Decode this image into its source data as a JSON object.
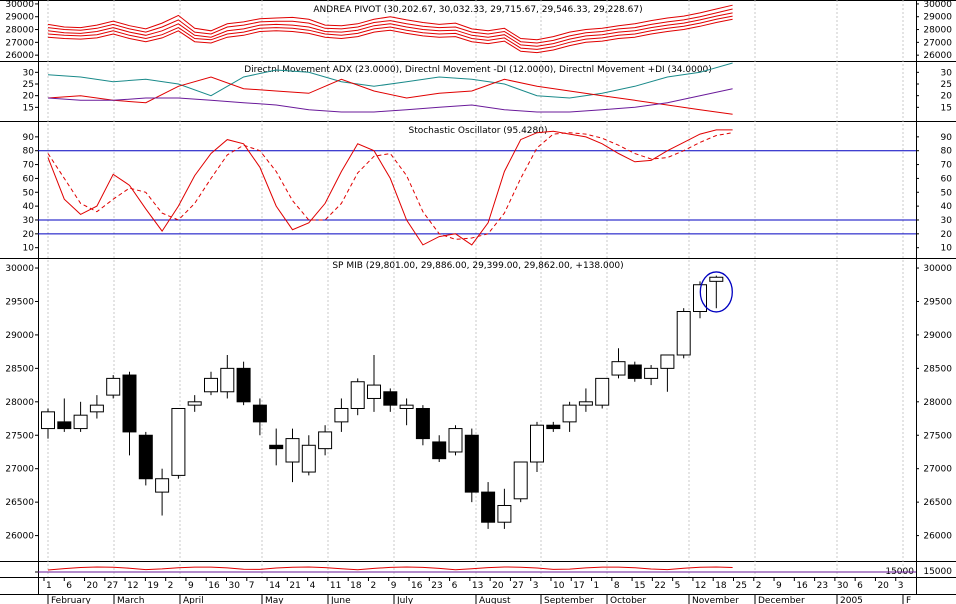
{
  "colors": {
    "bg": "#ffffff",
    "grid": "#bdbdbd",
    "frame": "#000000",
    "red": "#e00000",
    "teal": "#1a8a8a",
    "purple": "#6a1a9a",
    "blue": "#0000c0"
  },
  "chart_data": [
    {
      "type": "line",
      "title": "ANDREA PIVOT (30,202.67, 30,032.33, 29,715.67, 29,546.33, 29,228.67)",
      "ylim": [
        25700,
        30150
      ],
      "yticks": [
        30000,
        29000,
        28000,
        27000,
        26000
      ],
      "ytick_labels": [
        "30000",
        "29000",
        "28000",
        "27000",
        "26000"
      ],
      "x": [
        0,
        1,
        2,
        3,
        4,
        5,
        6,
        7,
        8,
        9,
        10,
        11,
        12,
        13,
        14,
        15,
        16,
        17,
        18,
        19,
        20,
        21,
        22,
        23,
        24,
        25,
        26,
        27,
        28,
        29,
        30,
        31,
        32,
        33,
        34,
        35,
        36,
        37,
        38,
        39,
        40,
        41,
        42
      ],
      "series": [
        {
          "name": "r2",
          "color": "red",
          "values": [
            28400,
            28200,
            28150,
            28350,
            28650,
            28300,
            28050,
            28500,
            29100,
            28100,
            27900,
            28450,
            28600,
            28850,
            28900,
            28950,
            28800,
            28350,
            28300,
            28450,
            28800,
            29000,
            28750,
            28550,
            28400,
            28500,
            28050,
            27900,
            28100,
            27300,
            27200,
            27450,
            27800,
            28000,
            28100,
            28300,
            28450,
            28700,
            28900,
            29050,
            29300,
            29600,
            29900
          ]
        },
        {
          "name": "r1",
          "color": "red",
          "values": [
            28150,
            28000,
            27950,
            28100,
            28400,
            28050,
            27800,
            28200,
            28750,
            27800,
            27650,
            28200,
            28350,
            28600,
            28650,
            28650,
            28500,
            28100,
            28050,
            28200,
            28550,
            28700,
            28450,
            28250,
            28150,
            28200,
            27800,
            27650,
            27850,
            27050,
            26950,
            27150,
            27500,
            27750,
            27850,
            28050,
            28150,
            28400,
            28600,
            28750,
            29000,
            29300,
            29600
          ]
        },
        {
          "name": "pivot",
          "color": "red",
          "values": [
            27900,
            27750,
            27700,
            27850,
            28150,
            27800,
            27550,
            27900,
            28450,
            27550,
            27400,
            27900,
            28050,
            28350,
            28400,
            28350,
            28200,
            27850,
            27800,
            27950,
            28300,
            28450,
            28200,
            28000,
            27900,
            27950,
            27550,
            27400,
            27600,
            26800,
            26700,
            26900,
            27250,
            27500,
            27600,
            27800,
            27900,
            28150,
            28350,
            28500,
            28750,
            29050,
            29300
          ]
        },
        {
          "name": "s1",
          "color": "red",
          "values": [
            27650,
            27550,
            27500,
            27600,
            27900,
            27550,
            27300,
            27600,
            28150,
            27300,
            27200,
            27650,
            27800,
            28100,
            28150,
            28100,
            27950,
            27650,
            27550,
            27700,
            28050,
            28200,
            27950,
            27750,
            27650,
            27700,
            27300,
            27150,
            27350,
            26550,
            26450,
            26650,
            27000,
            27250,
            27350,
            27550,
            27650,
            27900,
            28100,
            28250,
            28500,
            28800,
            29050
          ]
        },
        {
          "name": "s2",
          "color": "red",
          "values": [
            27400,
            27300,
            27250,
            27350,
            27650,
            27300,
            27050,
            27350,
            27900,
            27050,
            26950,
            27400,
            27550,
            27850,
            27900,
            27850,
            27700,
            27400,
            27300,
            27450,
            27800,
            27950,
            27700,
            27500,
            27400,
            27450,
            27050,
            26900,
            27100,
            26300,
            26200,
            26400,
            26750,
            27000,
            27100,
            27300,
            27400,
            27650,
            27850,
            28000,
            28250,
            28550,
            28800
          ]
        }
      ]
    },
    {
      "type": "line",
      "title": "Directnl Movement ADX (23.0000), Directnl Movement -DI (12.0000), Directnl Movement +DI (34.0000)",
      "ylim": [
        10,
        34
      ],
      "yticks": [
        30,
        25,
        20,
        15
      ],
      "ytick_labels": [
        "30",
        "25",
        "20",
        "15"
      ],
      "x": [
        0,
        2,
        4,
        6,
        8,
        10,
        12,
        14,
        16,
        18,
        20,
        22,
        24,
        26,
        28,
        30,
        32,
        34,
        36,
        38,
        40,
        42
      ],
      "series": [
        {
          "name": "+DI",
          "color": "teal",
          "values": [
            29,
            28,
            26,
            27,
            25,
            20,
            28,
            31,
            30,
            26,
            24,
            26,
            28,
            27,
            25,
            20,
            19,
            21,
            24,
            28,
            30,
            34
          ]
        },
        {
          "name": "-DI",
          "color": "red",
          "values": [
            19,
            20,
            18,
            17,
            24,
            28,
            23,
            22,
            21,
            27,
            22,
            19,
            21,
            22,
            27,
            24,
            22,
            20,
            18,
            16,
            14,
            12
          ]
        },
        {
          "name": "ADX",
          "color": "purple",
          "values": [
            19,
            18,
            18,
            19,
            19,
            18,
            17,
            16,
            14,
            13,
            13,
            14,
            15,
            16,
            14,
            13,
            13,
            14,
            15,
            17,
            20,
            23
          ]
        }
      ]
    },
    {
      "type": "line",
      "title": "Stochastic Oscillator (95.4280)",
      "ylim": [
        4,
        100
      ],
      "yticks": [
        90,
        80,
        70,
        60,
        50,
        40,
        30,
        20,
        10
      ],
      "ytick_labels": [
        "90",
        "80",
        "70",
        "60",
        "50",
        "40",
        "30",
        "20",
        "10"
      ],
      "hlines": [
        80,
        30,
        20
      ],
      "x": [
        0,
        1,
        2,
        3,
        4,
        5,
        6,
        7,
        8,
        9,
        10,
        11,
        12,
        13,
        14,
        15,
        16,
        17,
        18,
        19,
        20,
        21,
        22,
        23,
        24,
        25,
        26,
        27,
        28,
        29,
        30,
        31,
        32,
        33,
        34,
        35,
        36,
        37,
        38,
        39,
        40,
        41,
        42
      ],
      "series": [
        {
          "name": "%K",
          "color": "red",
          "values": [
            75,
            45,
            34,
            40,
            63,
            55,
            38,
            22,
            40,
            62,
            78,
            88,
            85,
            68,
            40,
            23,
            28,
            42,
            65,
            85,
            80,
            60,
            30,
            12,
            18,
            20,
            12,
            28,
            65,
            88,
            93,
            94,
            92,
            90,
            85,
            78,
            72,
            73,
            80,
            86,
            92,
            95,
            95
          ],
          "style": "solid"
        },
        {
          "name": "%D",
          "color": "red",
          "values": [
            78,
            60,
            42,
            36,
            45,
            53,
            50,
            35,
            30,
            42,
            60,
            77,
            84,
            80,
            65,
            44,
            30,
            30,
            42,
            64,
            76,
            78,
            62,
            36,
            20,
            16,
            17,
            20,
            35,
            60,
            82,
            92,
            93,
            92,
            89,
            84,
            78,
            74,
            75,
            80,
            86,
            91,
            93
          ],
          "style": "dashed"
        }
      ]
    },
    {
      "type": "candlestick",
      "title": "SP MIB (29,801.00, 29,886.00, 29,399.00, 29,862.00, +138.000)",
      "ylim": [
        25650,
        30120
      ],
      "yticks": [
        30000,
        29500,
        29000,
        28500,
        28000,
        27500,
        27000,
        26500,
        26000
      ],
      "ytick_labels": [
        "30000",
        "29500",
        "29000",
        "28500",
        "28000",
        "27500",
        "27000",
        "26500",
        "26000"
      ],
      "candles": [
        {
          "o": 27600,
          "h": 27900,
          "l": 27450,
          "c": 27850
        },
        {
          "o": 27700,
          "h": 28050,
          "l": 27550,
          "c": 27600
        },
        {
          "o": 27600,
          "h": 28000,
          "l": 27550,
          "c": 27800
        },
        {
          "o": 27850,
          "h": 28100,
          "l": 27750,
          "c": 27950
        },
        {
          "o": 28100,
          "h": 28400,
          "l": 28050,
          "c": 28350
        },
        {
          "o": 28400,
          "h": 28450,
          "l": 27200,
          "c": 27550
        },
        {
          "o": 27500,
          "h": 27550,
          "l": 26750,
          "c": 26850
        },
        {
          "o": 26650,
          "h": 27000,
          "l": 26300,
          "c": 26850
        },
        {
          "o": 26900,
          "h": 27900,
          "l": 26850,
          "c": 27900
        },
        {
          "o": 27950,
          "h": 28100,
          "l": 27850,
          "c": 28000
        },
        {
          "o": 28150,
          "h": 28450,
          "l": 28100,
          "c": 28350
        },
        {
          "o": 28150,
          "h": 28700,
          "l": 28050,
          "c": 28500
        },
        {
          "o": 28500,
          "h": 28600,
          "l": 27950,
          "c": 28000
        },
        {
          "o": 27950,
          "h": 28050,
          "l": 27500,
          "c": 27700
        },
        {
          "o": 27350,
          "h": 27600,
          "l": 27050,
          "c": 27300
        },
        {
          "o": 27100,
          "h": 27600,
          "l": 26800,
          "c": 27450
        },
        {
          "o": 26950,
          "h": 27500,
          "l": 26900,
          "c": 27350
        },
        {
          "o": 27300,
          "h": 27650,
          "l": 27200,
          "c": 27550
        },
        {
          "o": 27700,
          "h": 28050,
          "l": 27550,
          "c": 27900
        },
        {
          "o": 27900,
          "h": 28350,
          "l": 27800,
          "c": 28300
        },
        {
          "o": 28050,
          "h": 28700,
          "l": 27850,
          "c": 28250
        },
        {
          "o": 28150,
          "h": 28200,
          "l": 27850,
          "c": 27950
        },
        {
          "o": 27900,
          "h": 28050,
          "l": 27650,
          "c": 27950
        },
        {
          "o": 27900,
          "h": 27950,
          "l": 27350,
          "c": 27450
        },
        {
          "o": 27400,
          "h": 27500,
          "l": 27100,
          "c": 27150
        },
        {
          "o": 27250,
          "h": 27650,
          "l": 27200,
          "c": 27600
        },
        {
          "o": 27500,
          "h": 27600,
          "l": 26500,
          "c": 26650
        },
        {
          "o": 26650,
          "h": 26800,
          "l": 26100,
          "c": 26200
        },
        {
          "o": 26200,
          "h": 26700,
          "l": 26100,
          "c": 26450
        },
        {
          "o": 26550,
          "h": 27100,
          "l": 26500,
          "c": 27100
        },
        {
          "o": 27100,
          "h": 27700,
          "l": 26950,
          "c": 27650
        },
        {
          "o": 27650,
          "h": 27700,
          "l": 27550,
          "c": 27600
        },
        {
          "o": 27700,
          "h": 28000,
          "l": 27550,
          "c": 27950
        },
        {
          "o": 27950,
          "h": 28200,
          "l": 27850,
          "c": 28000
        },
        {
          "o": 27950,
          "h": 28350,
          "l": 27900,
          "c": 28350
        },
        {
          "o": 28400,
          "h": 28800,
          "l": 28350,
          "c": 28600
        },
        {
          "o": 28550,
          "h": 28600,
          "l": 28300,
          "c": 28350
        },
        {
          "o": 28350,
          "h": 28550,
          "l": 28250,
          "c": 28500
        },
        {
          "o": 28500,
          "h": 28700,
          "l": 28150,
          "c": 28700
        },
        {
          "o": 28700,
          "h": 29400,
          "l": 28650,
          "c": 29350
        },
        {
          "o": 29350,
          "h": 29800,
          "l": 29250,
          "c": 29750
        },
        {
          "o": 29801,
          "h": 29886,
          "l": 29399,
          "c": 29862
        }
      ],
      "annotation": "circle around last candle"
    }
  ],
  "volume_strip": {
    "ytick_label": "15000"
  },
  "x_axis": {
    "day_labels": [
      "1",
      "6",
      "13",
      "20",
      "27",
      "5",
      "12",
      "19",
      "2",
      "9",
      "16",
      "23",
      "30",
      "7",
      "14",
      "21",
      "4",
      "11",
      "18",
      "25",
      "2",
      "9",
      "16",
      "23",
      "30",
      "6",
      "13",
      "20",
      "27",
      "3",
      "10",
      "17",
      "24",
      "1",
      "8",
      "15",
      "22",
      "29",
      "5",
      "12",
      "18",
      "25",
      "2",
      "9",
      "16",
      "23",
      "30",
      "6",
      "13",
      "20",
      "3"
    ],
    "day_labels_visible": [
      "1",
      "6",
      "20",
      "27",
      "12",
      "19",
      "2",
      "9",
      "16",
      "30",
      "7",
      "14",
      "21",
      "4",
      "11",
      "18",
      "2",
      "9",
      "16",
      "23",
      "6",
      "13",
      "20",
      "27",
      "3",
      "10",
      "17",
      "1",
      "8",
      "15",
      "22",
      "5",
      "12",
      "18",
      "25",
      "2",
      "9",
      "16",
      "23",
      "30",
      "6",
      "20",
      "3"
    ],
    "months": [
      "February",
      "March",
      "April",
      "May",
      "June",
      "July",
      "August",
      "September",
      "October",
      "November",
      "December",
      "2005",
      "F"
    ]
  }
}
